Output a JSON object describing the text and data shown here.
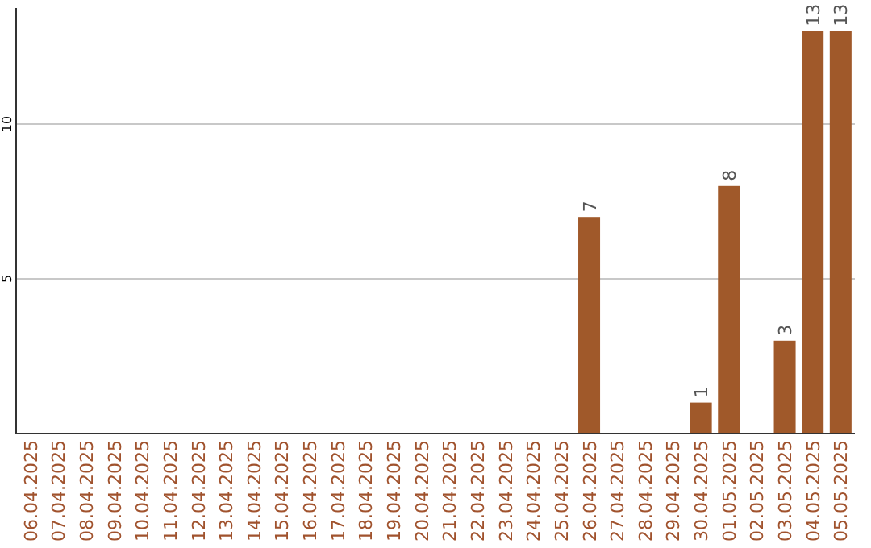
{
  "chart_data": {
    "type": "bar",
    "categories": [
      "06.04.2025",
      "07.04.2025",
      "08.04.2025",
      "09.04.2025",
      "10.04.2025",
      "11.04.2025",
      "12.04.2025",
      "13.04.2025",
      "14.04.2025",
      "15.04.2025",
      "16.04.2025",
      "17.04.2025",
      "18.04.2025",
      "19.04.2025",
      "20.04.2025",
      "21.04.2025",
      "22.04.2025",
      "23.04.2025",
      "24.04.2025",
      "25.04.2025",
      "26.04.2025",
      "27.04.2025",
      "28.04.2025",
      "29.04.2025",
      "30.04.2025",
      "01.05.2025",
      "02.05.2025",
      "03.05.2025",
      "04.05.2025",
      "05.05.2025"
    ],
    "values": [
      0,
      0,
      0,
      0,
      0,
      0,
      0,
      0,
      0,
      0,
      0,
      0,
      0,
      0,
      0,
      0,
      0,
      0,
      0,
      0,
      7,
      0,
      0,
      0,
      1,
      8,
      0,
      3,
      13,
      13
    ],
    "value_labels": [
      null,
      null,
      null,
      null,
      null,
      null,
      null,
      null,
      null,
      null,
      null,
      null,
      null,
      null,
      null,
      null,
      null,
      null,
      null,
      null,
      "7",
      null,
      null,
      null,
      "1",
      "8",
      null,
      "3",
      "13",
      "13"
    ],
    "color": "#a0592a",
    "ylim": [
      0,
      13.75
    ],
    "yticks": [
      5,
      10
    ],
    "grid": "y"
  }
}
